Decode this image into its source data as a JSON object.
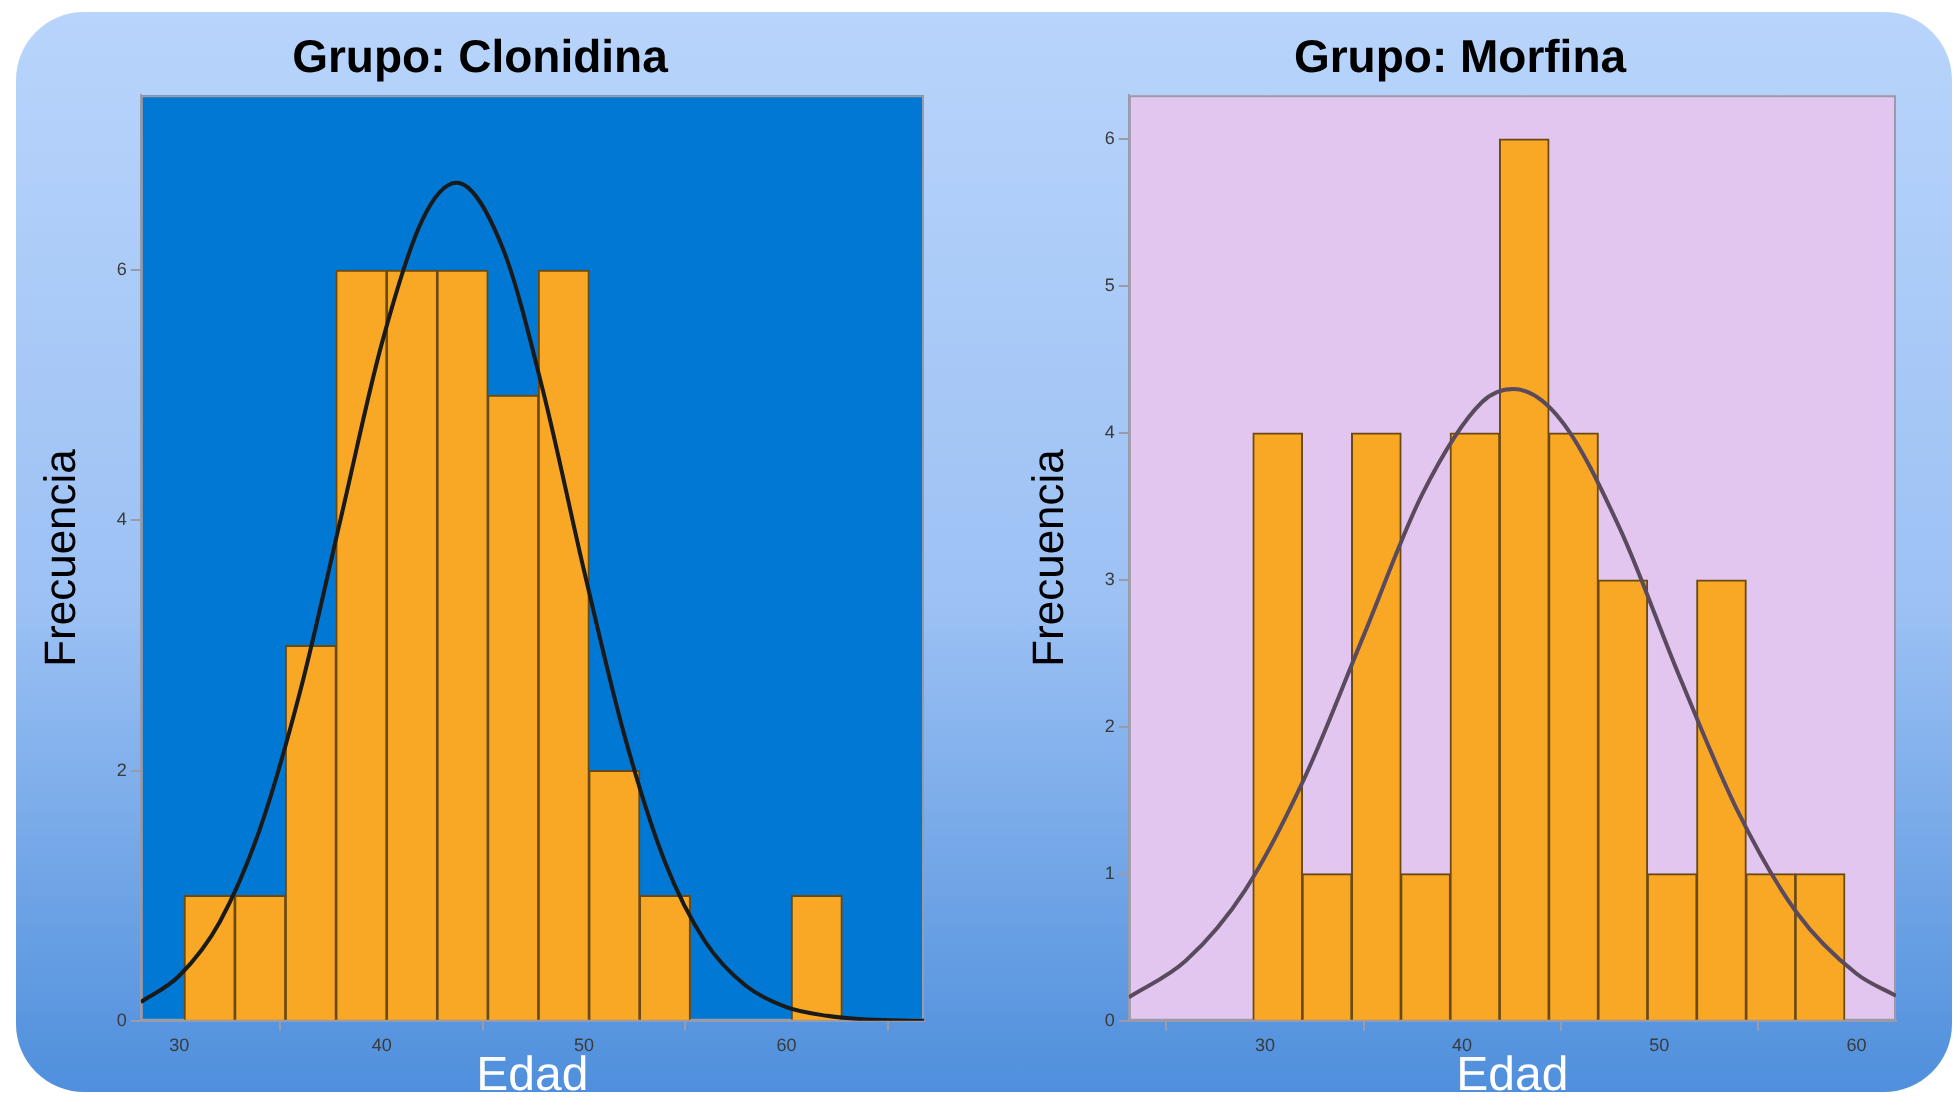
{
  "chart_data": [
    {
      "type": "histogram",
      "title": "Grupo: Clonidina",
      "xlabel": "Edad",
      "ylabel": "Frecuencia",
      "xlim": [
        28.1,
        66.8
      ],
      "xticks": [
        30,
        40,
        50,
        60
      ],
      "ylim": [
        0,
        7.4
      ],
      "yticks": [
        0,
        2,
        4,
        6
      ],
      "grid": false,
      "legend": false,
      "series": [
        {
          "type": "histogram",
          "color": "#f9a825",
          "bins": [
            30.25,
            32.75,
            35.25,
            37.75,
            40.25,
            42.75,
            45.25,
            47.75,
            50.25,
            52.75,
            55.25,
            57.75,
            60.25,
            62.75
          ],
          "values": [
            1,
            1,
            3,
            6,
            6,
            6,
            5,
            6,
            2,
            1,
            0,
            0,
            1
          ]
        },
        {
          "type": "line",
          "color": "#1a1a1a",
          "x": [
            28.1,
            30,
            32,
            34,
            36,
            38,
            40,
            42,
            43.7,
            46,
            48,
            50,
            52,
            54,
            56,
            58,
            60,
            62,
            64,
            66.8
          ],
          "values": [
            0.15,
            0.36,
            0.79,
            1.54,
            2.65,
            4.03,
            5.41,
            6.4,
            6.7,
            6.17,
            5.02,
            3.6,
            2.28,
            1.27,
            0.63,
            0.28,
            0.11,
            0.04,
            0.01,
            0
          ]
        }
      ]
    },
    {
      "type": "histogram",
      "title": "Grupo: Morfina",
      "xlabel": "Edad",
      "ylabel": "Frecuencia",
      "xlim": [
        23.1,
        62
      ],
      "xticks": [
        30,
        40,
        50,
        60
      ],
      "ylim": [
        0,
        6.3
      ],
      "yticks": [
        0,
        1,
        2,
        3,
        4,
        5,
        6
      ],
      "grid": false,
      "legend": false,
      "series": [
        {
          "type": "histogram",
          "color": "#f9a825",
          "bins": [
            29.4,
            31.9,
            34.4,
            36.9,
            39.4,
            41.9,
            44.4,
            46.9,
            49.4,
            51.9,
            54.4,
            56.9,
            59.4
          ],
          "values": [
            4,
            1,
            4,
            1,
            4,
            6,
            4,
            3,
            1,
            3,
            1,
            1
          ]
        },
        {
          "type": "line",
          "color": "#5a4a5e",
          "x": [
            23.1,
            26,
            29,
            32,
            35,
            38,
            41,
            42.6,
            45,
            48,
            51,
            54,
            57,
            60,
            62
          ],
          "values": [
            0.16,
            0.41,
            0.89,
            1.65,
            2.62,
            3.59,
            4.21,
            4.3,
            4.09,
            3.35,
            2.35,
            1.42,
            0.73,
            0.32,
            0.17
          ]
        }
      ]
    }
  ]
}
